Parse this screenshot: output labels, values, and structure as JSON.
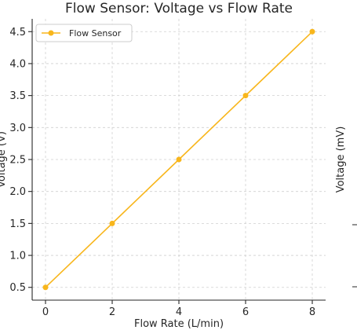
{
  "chart_data": {
    "type": "line",
    "title": "Flow Sensor: Voltage vs Flow Rate",
    "xlabel": "Flow Rate (L/min)",
    "ylabel": "Voltage (V)",
    "x_ticks": [
      "0",
      "2",
      "4",
      "6",
      "8"
    ],
    "y_ticks": [
      "0.5",
      "1.0",
      "1.5",
      "2.0",
      "2.5",
      "3.0",
      "3.5",
      "4.0",
      "4.5"
    ],
    "xlim": [
      -0.4,
      8.4
    ],
    "ylim": [
      0.3,
      4.7
    ],
    "grid": true,
    "legend_position": "top-left",
    "series": [
      {
        "name": "Flow Sensor",
        "color": "#f8b61c",
        "x": [
          0,
          2,
          4,
          6,
          8
        ],
        "y": [
          0.5,
          1.5,
          2.5,
          3.5,
          4.5
        ]
      }
    ],
    "secondary_axis": {
      "ylabel": "Voltage (mV)"
    }
  }
}
